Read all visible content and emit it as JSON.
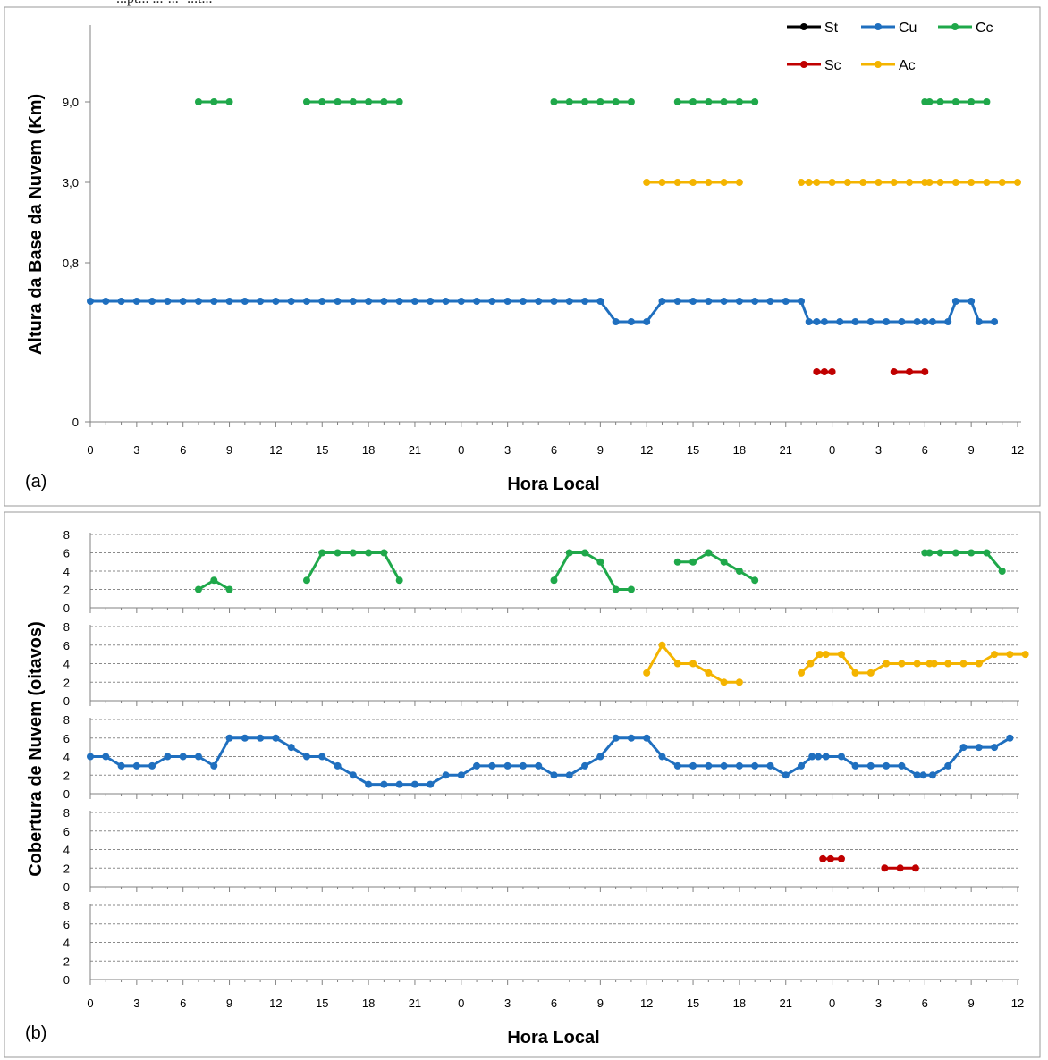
{
  "top_caption": "...pt... ...-...- ...t...",
  "colors": {
    "St": "#000000",
    "Cu": "#1F6FBF",
    "Cc": "#1FA84A",
    "Sc": "#C00000",
    "Ac": "#F4B400"
  },
  "chart_data": [
    {
      "type": "line",
      "panel_label": "(a)",
      "xlabel": "Hora Local",
      "ylabel": "Altura da Base da Nuvem (Km)",
      "y_tick_labels": [
        "0",
        "0,8",
        "3,0",
        "9,0"
      ],
      "x_tick_labels": [
        "0",
        "3",
        "6",
        "9",
        "12",
        "15",
        "18",
        "21",
        "0",
        "3",
        "6",
        "9",
        "12",
        "15",
        "18",
        "21",
        "0",
        "3",
        "6",
        "9",
        "12"
      ],
      "legend": [
        "St",
        "Cu",
        "Cc",
        "Sc",
        "Ac"
      ],
      "series": [
        {
          "name": "Cu",
          "level": "0.8",
          "points": [
            [
              0,
              1.0
            ],
            [
              1,
              1.0
            ],
            [
              2,
              1.0
            ],
            [
              3,
              1.0
            ],
            [
              4,
              1.0
            ],
            [
              5,
              1.0
            ],
            [
              6,
              1.0
            ],
            [
              7,
              1.0
            ],
            [
              8,
              1.0
            ],
            [
              9,
              1.0
            ],
            [
              10,
              1.0
            ],
            [
              11,
              1.0
            ],
            [
              12,
              1.0
            ],
            [
              13,
              1.0
            ],
            [
              14,
              1.0
            ],
            [
              15,
              1.0
            ],
            [
              16,
              1.0
            ],
            [
              17,
              1.0
            ],
            [
              18,
              1.0
            ],
            [
              19,
              1.0
            ],
            [
              20,
              1.0
            ],
            [
              21,
              1.0
            ],
            [
              22,
              1.0
            ],
            [
              23,
              1.0
            ],
            [
              24,
              1.0
            ],
            [
              25,
              1.0
            ],
            [
              26,
              1.0
            ],
            [
              27,
              1.0
            ],
            [
              28,
              1.0
            ],
            [
              29,
              1.0
            ],
            [
              30,
              1.0
            ],
            [
              31,
              1.0
            ],
            [
              32,
              1.0
            ],
            [
              33,
              1.0
            ],
            [
              34,
              0.75
            ],
            [
              35,
              0.75
            ],
            [
              36,
              0.75
            ],
            [
              37,
              1.0
            ],
            [
              38,
              1.0
            ],
            [
              39,
              1.0
            ],
            [
              40,
              1.0
            ],
            [
              41,
              1.0
            ],
            [
              42,
              1.0
            ],
            [
              43,
              1.0
            ],
            [
              44,
              1.0
            ],
            [
              45,
              1.0
            ],
            [
              46,
              1.0
            ],
            [
              46.5,
              0.75
            ],
            [
              47,
              0.75
            ],
            [
              47.5,
              0.75
            ],
            [
              48.5,
              0.75
            ],
            [
              49.5,
              0.75
            ],
            [
              50.5,
              0.75
            ],
            [
              51.5,
              0.75
            ],
            [
              52.5,
              0.75
            ],
            [
              53.5,
              0.75
            ],
            [
              54,
              0.75
            ],
            [
              54.5,
              0.75
            ],
            [
              55.5,
              0.75
            ],
            [
              56,
              1.0
            ],
            [
              57,
              1.0
            ],
            [
              57.5,
              0.75
            ],
            [
              58.5,
              0.75
            ]
          ]
        },
        {
          "name": "Cc",
          "level": "9,0",
          "segments": [
            [
              7,
              8,
              9
            ],
            [
              14,
              15,
              16,
              17,
              18,
              19,
              20
            ],
            [
              30,
              31,
              32,
              33,
              34,
              35
            ],
            [
              38,
              39,
              40,
              41,
              42,
              43
            ],
            [
              54,
              54.3,
              55,
              56,
              57,
              58
            ]
          ]
        },
        {
          "name": "Ac",
          "level": "3,0",
          "segments": [
            [
              36,
              37,
              38,
              39,
              40,
              41,
              42
            ],
            [
              46,
              46.5,
              47,
              48,
              49,
              50,
              51,
              52,
              53,
              54,
              54.3,
              55,
              56,
              57,
              58,
              59,
              60
            ]
          ]
        },
        {
          "name": "Sc",
          "level": "below Cu",
          "segments": [
            [
              47,
              47.5,
              48
            ],
            [
              52,
              53,
              54
            ]
          ]
        }
      ]
    },
    {
      "type": "line",
      "panel_label": "(b)",
      "xlabel": "Hora Local",
      "ylabel": "Cobertura de Nuvem (oitavos)",
      "y_tick_labels": [
        "0",
        "2",
        "4",
        "6",
        "8"
      ],
      "x_tick_labels": [
        "0",
        "3",
        "6",
        "9",
        "12",
        "15",
        "18",
        "21",
        "0",
        "3",
        "6",
        "9",
        "12",
        "15",
        "18",
        "21",
        "0",
        "3",
        "6",
        "9",
        "12"
      ],
      "ylim": [
        0,
        8
      ],
      "subpanels": [
        {
          "series": "Cc",
          "segments": [
            [
              [
                7,
                2
              ],
              [
                8,
                3
              ],
              [
                9,
                2
              ]
            ],
            [
              [
                14,
                3
              ],
              [
                15,
                6
              ],
              [
                16,
                6
              ],
              [
                17,
                6
              ],
              [
                18,
                6
              ],
              [
                19,
                6
              ],
              [
                20,
                3
              ]
            ],
            [
              [
                30,
                3
              ],
              [
                31,
                6
              ],
              [
                32,
                6
              ],
              [
                33,
                5
              ],
              [
                34,
                2
              ],
              [
                35,
                2
              ]
            ],
            [
              [
                38,
                5
              ],
              [
                39,
                5
              ],
              [
                40,
                6
              ],
              [
                41,
                5
              ],
              [
                42,
                4
              ],
              [
                43,
                3
              ]
            ],
            [
              [
                54,
                6
              ],
              [
                54.3,
                6
              ],
              [
                55,
                6
              ],
              [
                56,
                6
              ],
              [
                57,
                6
              ],
              [
                58,
                6
              ],
              [
                59,
                4
              ]
            ]
          ]
        },
        {
          "series": "Ac",
          "segments": [
            [
              [
                36,
                3
              ],
              [
                37,
                6
              ],
              [
                38,
                4
              ],
              [
                39,
                4
              ],
              [
                40,
                3
              ],
              [
                41,
                2
              ],
              [
                42,
                2
              ]
            ],
            [
              [
                46,
                3
              ],
              [
                46.6,
                4
              ],
              [
                47.2,
                5
              ],
              [
                47.6,
                5
              ],
              [
                48.6,
                5
              ],
              [
                49.5,
                3
              ],
              [
                50.5,
                3
              ],
              [
                51.5,
                4
              ],
              [
                52.5,
                4
              ],
              [
                53.5,
                4
              ],
              [
                54.3,
                4
              ],
              [
                54.6,
                4
              ],
              [
                55.5,
                4
              ],
              [
                56.5,
                4
              ],
              [
                57.5,
                4
              ],
              [
                58.5,
                5
              ],
              [
                59.5,
                5
              ],
              [
                60.5,
                5
              ]
            ]
          ]
        },
        {
          "series": "Cu",
          "segments": [
            [
              [
                0,
                4
              ],
              [
                1,
                4
              ],
              [
                2,
                3
              ],
              [
                3,
                3
              ],
              [
                4,
                3
              ],
              [
                5,
                4
              ],
              [
                6,
                4
              ],
              [
                7,
                4
              ],
              [
                8,
                3
              ],
              [
                9,
                6
              ],
              [
                10,
                6
              ],
              [
                11,
                6
              ],
              [
                12,
                6
              ],
              [
                13,
                5
              ],
              [
                14,
                4
              ],
              [
                15,
                4
              ],
              [
                16,
                3
              ],
              [
                17,
                2
              ],
              [
                18,
                1
              ],
              [
                19,
                1
              ],
              [
                20,
                1
              ],
              [
                21,
                1
              ],
              [
                22,
                1
              ],
              [
                23,
                2
              ],
              [
                24,
                2
              ],
              [
                25,
                3
              ],
              [
                26,
                3
              ],
              [
                27,
                3
              ],
              [
                28,
                3
              ],
              [
                29,
                3
              ],
              [
                30,
                2
              ],
              [
                31,
                2
              ],
              [
                32,
                3
              ],
              [
                33,
                4
              ],
              [
                34,
                6
              ],
              [
                35,
                6
              ],
              [
                36,
                6
              ],
              [
                37,
                4
              ],
              [
                38,
                3
              ],
              [
                39,
                3
              ],
              [
                40,
                3
              ],
              [
                41,
                3
              ],
              [
                42,
                3
              ],
              [
                43,
                3
              ],
              [
                44,
                3
              ],
              [
                45,
                2
              ],
              [
                46,
                3
              ],
              [
                46.7,
                4
              ],
              [
                47.1,
                4
              ],
              [
                47.6,
                4
              ],
              [
                48.6,
                4
              ],
              [
                49.5,
                3
              ],
              [
                50.5,
                3
              ],
              [
                51.5,
                3
              ],
              [
                52.5,
                3
              ],
              [
                53.5,
                2
              ],
              [
                53.9,
                2
              ],
              [
                54.5,
                2
              ],
              [
                55.5,
                3
              ],
              [
                56.5,
                5
              ],
              [
                57.5,
                5
              ],
              [
                58.5,
                5
              ],
              [
                59.5,
                6
              ]
            ]
          ]
        },
        {
          "series": "Sc",
          "segments": [
            [
              [
                47.4,
                3
              ],
              [
                47.9,
                3
              ],
              [
                48.6,
                3
              ]
            ],
            [
              [
                51.4,
                2
              ],
              [
                52.4,
                2
              ],
              [
                53.4,
                2
              ]
            ]
          ]
        },
        {
          "series": "St",
          "segments": []
        }
      ]
    }
  ]
}
